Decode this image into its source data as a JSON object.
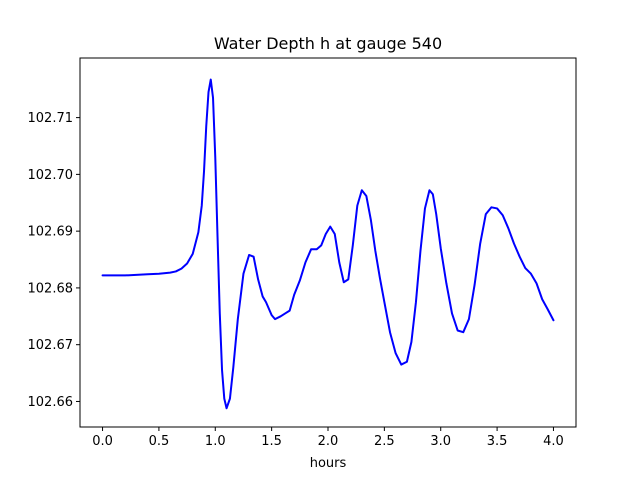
{
  "chart_data": {
    "type": "line",
    "title": "Water Depth h at gauge 540",
    "xlabel": "hours",
    "ylabel": "",
    "xlim": [
      -0.2,
      4.2
    ],
    "ylim": [
      102.6555,
      102.7205
    ],
    "xticks": [
      0.0,
      0.5,
      1.0,
      1.5,
      2.0,
      2.5,
      3.0,
      3.5,
      4.0
    ],
    "xtick_labels": [
      "0.0",
      "0.5",
      "1.0",
      "1.5",
      "2.0",
      "2.5",
      "3.0",
      "3.5",
      "4.0"
    ],
    "yticks": [
      102.66,
      102.67,
      102.68,
      102.69,
      102.7,
      102.71
    ],
    "ytick_labels": [
      "102.66",
      "102.67",
      "102.68",
      "102.69",
      "102.70",
      "102.71"
    ],
    "grid": false,
    "legend": "none",
    "series": [
      {
        "color": "#0000ff",
        "x": [
          0.0,
          0.2,
          0.4,
          0.5,
          0.6,
          0.65,
          0.7,
          0.75,
          0.8,
          0.85,
          0.88,
          0.9,
          0.92,
          0.94,
          0.96,
          0.98,
          1.0,
          1.02,
          1.04,
          1.06,
          1.08,
          1.1,
          1.13,
          1.16,
          1.2,
          1.25,
          1.3,
          1.34,
          1.38,
          1.42,
          1.45,
          1.5,
          1.53,
          1.58,
          1.62,
          1.66,
          1.7,
          1.75,
          1.8,
          1.85,
          1.9,
          1.94,
          1.98,
          2.02,
          2.06,
          2.1,
          2.14,
          2.18,
          2.22,
          2.26,
          2.3,
          2.34,
          2.38,
          2.42,
          2.46,
          2.5,
          2.55,
          2.6,
          2.65,
          2.7,
          2.74,
          2.78,
          2.82,
          2.86,
          2.9,
          2.93,
          2.96,
          3.0,
          3.05,
          3.1,
          3.15,
          3.2,
          3.25,
          3.3,
          3.35,
          3.4,
          3.45,
          3.5,
          3.55,
          3.6,
          3.65,
          3.7,
          3.75,
          3.8,
          3.85,
          3.9,
          3.95,
          4.0
        ],
        "y": [
          102.6822,
          102.6822,
          102.6824,
          102.6825,
          102.6827,
          102.6829,
          102.6834,
          102.6843,
          102.686,
          102.6898,
          102.6945,
          102.7005,
          102.7085,
          102.7145,
          102.7167,
          102.7135,
          102.703,
          102.689,
          102.6755,
          102.6655,
          102.6605,
          102.6588,
          102.6605,
          102.666,
          102.6745,
          102.6825,
          102.6858,
          102.6855,
          102.6815,
          102.6785,
          102.6775,
          102.6752,
          102.6745,
          102.675,
          102.6755,
          102.676,
          102.6788,
          102.6813,
          102.6845,
          102.6868,
          102.6868,
          102.6875,
          102.6895,
          102.6908,
          102.6895,
          102.6845,
          102.681,
          102.6815,
          102.6875,
          102.6945,
          102.6972,
          102.6962,
          102.692,
          102.6865,
          102.6818,
          102.6775,
          102.6722,
          102.6685,
          102.6665,
          102.667,
          102.6705,
          102.6775,
          102.6865,
          102.694,
          102.6972,
          102.6965,
          102.693,
          102.687,
          102.6808,
          102.6755,
          102.6725,
          102.6722,
          102.6745,
          102.6805,
          102.6878,
          102.693,
          102.6942,
          102.694,
          102.6928,
          102.6905,
          102.6878,
          102.6855,
          102.6835,
          102.6825,
          102.6808,
          102.678,
          102.6762,
          102.6743
        ]
      }
    ]
  }
}
